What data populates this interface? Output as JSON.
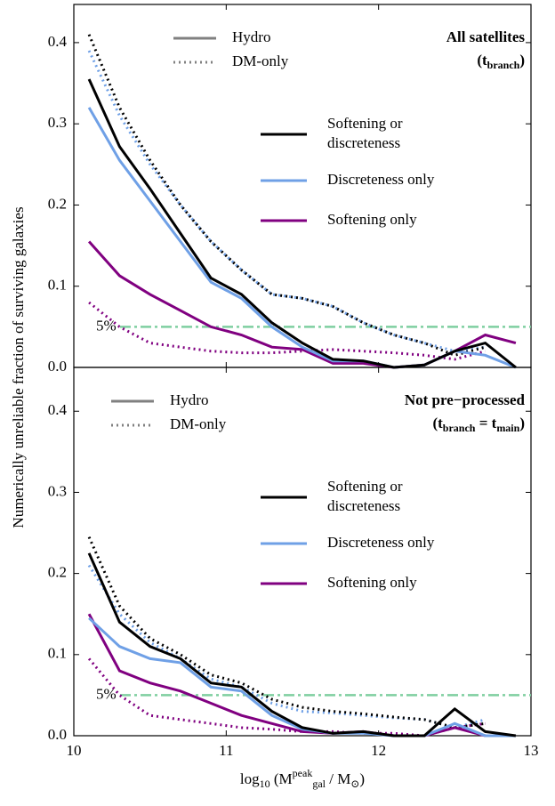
{
  "chart_data": [
    {
      "type": "line",
      "ylabel": "Numerically unreliable fraction of surviving galaxies",
      "annotation": [
        [
          "All satellites",
          "normal"
        ]
      ],
      "annotation2": [
        [
          "(t",
          "normal"
        ],
        [
          "branch",
          "sub"
        ],
        [
          ")",
          "normal"
        ]
      ],
      "style_legend": [
        {
          "name": "Hydro",
          "dash": "solid"
        },
        {
          "name": "DM-only",
          "dash": "dotted"
        }
      ],
      "style_legend_color": "#808080",
      "x": [
        10.1,
        10.3,
        10.5,
        10.7,
        10.9,
        11.1,
        11.3,
        11.5,
        11.7,
        11.9,
        12.1,
        12.3,
        12.5,
        12.7,
        12.9
      ],
      "series": [
        {
          "name": "Softening or discreteness",
          "color": "#000000",
          "values": [
            0.355,
            0.272,
            0.22,
            0.165,
            0.11,
            0.09,
            0.055,
            0.03,
            0.01,
            0.008,
            0.0,
            0.003,
            0.02,
            0.03,
            0.0
          ],
          "dm_values": [
            0.41,
            0.32,
            0.255,
            0.2,
            0.155,
            0.12,
            0.09,
            0.085,
            0.075,
            0.055,
            0.04,
            0.03,
            0.015,
            0.025,
            null
          ]
        },
        {
          "name": "Discreteness only",
          "color": "#6fa0e6",
          "values": [
            0.32,
            0.255,
            0.205,
            0.155,
            0.105,
            0.085,
            0.05,
            0.025,
            0.008,
            0.008,
            0.0,
            0.003,
            0.02,
            0.015,
            0.0
          ],
          "dm_values": [
            0.39,
            0.31,
            0.25,
            0.2,
            0.155,
            0.12,
            0.09,
            0.085,
            0.075,
            0.055,
            0.04,
            0.03,
            0.02,
            0.025,
            null
          ]
        },
        {
          "name": "Softening only",
          "color": "#800080",
          "values": [
            0.155,
            0.113,
            0.09,
            0.07,
            0.05,
            0.04,
            0.025,
            0.022,
            0.005,
            0.005,
            0.0,
            0.003,
            0.02,
            0.04,
            0.03
          ],
          "dm_values": [
            0.08,
            0.05,
            0.03,
            0.025,
            0.02,
            0.018,
            0.018,
            0.02,
            0.022,
            0.02,
            0.018,
            0.015,
            0.01,
            0.02,
            null
          ]
        }
      ],
      "threshold": {
        "value": 0.05,
        "label": "5%"
      },
      "threshold_color": "#7fcfa0",
      "xlim": [
        10,
        13
      ],
      "xticks": [
        10,
        11,
        12,
        13
      ],
      "ylim": [
        0,
        0.447
      ],
      "yticks": [
        {
          "value": 0,
          "label": "0.0"
        },
        0.1,
        0.2,
        0.3,
        0.4
      ]
    },
    {
      "type": "line",
      "xlabel": [
        [
          "log",
          "normal"
        ],
        [
          "10",
          "sub"
        ],
        [
          " (M",
          "normal"
        ],
        [
          "peak",
          "sup"
        ],
        [
          "gal",
          "sub"
        ],
        [
          " / M",
          "normal"
        ],
        [
          "⊙",
          "sub"
        ],
        [
          ")",
          "normal"
        ]
      ],
      "annotation": [
        [
          "Not pre−processed",
          "normal"
        ]
      ],
      "annotation2": [
        [
          "(t",
          "normal"
        ],
        [
          "branch",
          "sub"
        ],
        [
          " = t",
          "normal"
        ],
        [
          "main",
          "sub"
        ],
        [
          ")",
          "normal"
        ]
      ],
      "style_legend": [
        {
          "name": "Hydro",
          "dash": "solid"
        },
        {
          "name": "DM-only",
          "dash": "dotted"
        }
      ],
      "style_legend_color": "#808080",
      "x": [
        10.1,
        10.3,
        10.5,
        10.7,
        10.9,
        11.1,
        11.3,
        11.5,
        11.7,
        11.9,
        12.1,
        12.3,
        12.5,
        12.7,
        12.9
      ],
      "series": [
        {
          "name": "Softening or discreteness",
          "color": "#000000",
          "values": [
            0.225,
            0.14,
            0.11,
            0.095,
            0.065,
            0.06,
            0.03,
            0.01,
            0.003,
            0.005,
            0.0,
            0.0,
            0.033,
            0.005,
            0.0
          ],
          "dm_values": [
            0.245,
            0.16,
            0.12,
            0.1,
            0.075,
            0.065,
            0.045,
            0.035,
            0.03,
            0.027,
            0.023,
            0.02,
            0.01,
            0.015,
            null
          ]
        },
        {
          "name": "Discreteness only",
          "color": "#6fa0e6",
          "values": [
            0.145,
            0.11,
            0.095,
            0.09,
            0.06,
            0.055,
            0.025,
            0.008,
            0.003,
            0.003,
            0.0,
            0.0,
            0.015,
            0.0,
            0.0
          ],
          "dm_values": [
            0.21,
            0.15,
            0.115,
            0.095,
            0.07,
            0.06,
            0.04,
            0.03,
            0.028,
            0.025,
            0.022,
            0.02,
            0.01,
            0.02,
            null
          ]
        },
        {
          "name": "Softening only",
          "color": "#800080",
          "values": [
            0.15,
            0.08,
            0.065,
            0.055,
            0.04,
            0.025,
            0.015,
            0.005,
            0.003,
            0.005,
            0.0,
            0.0,
            0.01,
            0.0,
            0.0
          ],
          "dm_values": [
            0.095,
            0.05,
            0.025,
            0.02,
            0.015,
            0.01,
            0.008,
            0.005,
            0.005,
            0.003,
            0.003,
            0.0,
            0.01,
            0.015,
            null
          ]
        }
      ],
      "threshold": {
        "value": 0.05,
        "label": "5%"
      },
      "threshold_color": "#7fcfa0",
      "xlim": [
        10,
        13
      ],
      "xticks": [
        10,
        11,
        12,
        13
      ],
      "ylim": [
        0,
        0.454
      ],
      "yticks": [
        {
          "value": 0,
          "label": "0.0"
        },
        0.1,
        0.2,
        0.3,
        0.4
      ]
    }
  ]
}
